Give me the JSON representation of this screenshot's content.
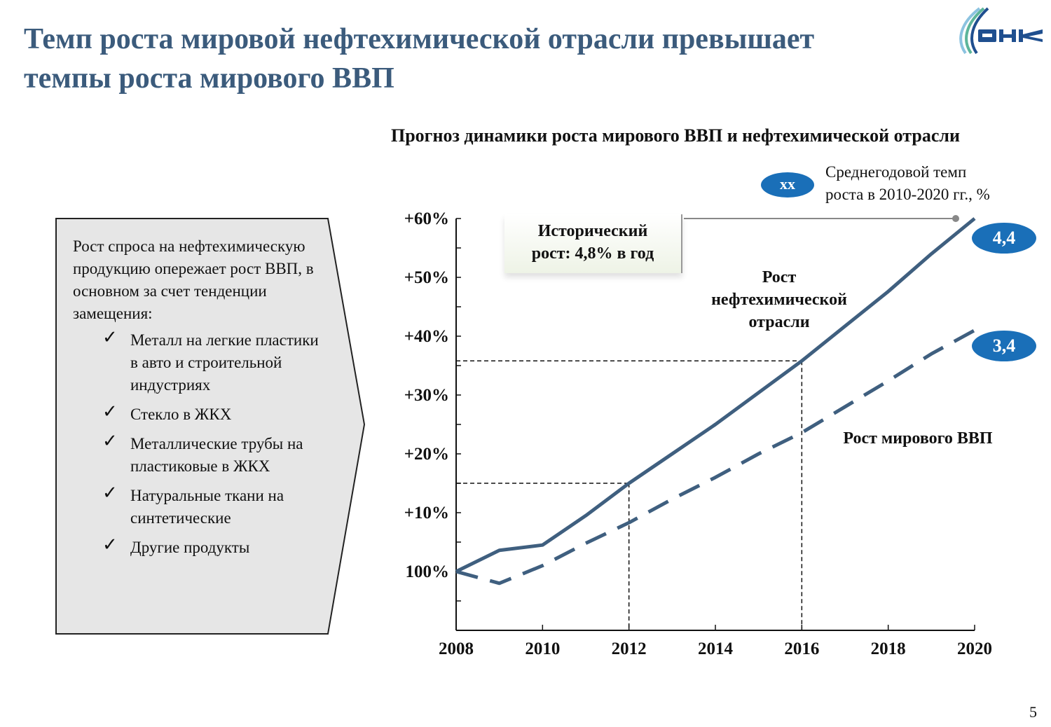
{
  "slide": {
    "title_line1": "Темп роста мировой нефтехимической отрасли превышает",
    "title_line2": "темпы роста мирового ВВП",
    "logo_text": "ОНК",
    "page_number": "5"
  },
  "left_box": {
    "intro": "Рост спроса на нефтехимическую продукцию опережает рост ВВП, в основном за счет тенденции замещения:",
    "check_icon": "check-mark",
    "items": [
      "Металл на легкие пластики в авто и строительной индустриях",
      "Стекло в ЖКХ",
      "Металлические трубы на пластиковые в ЖКХ",
      "Натуральные ткани на синтетические",
      "Другие продукты"
    ]
  },
  "chart_data": {
    "type": "line",
    "title": "Прогноз динамики роста мирового ВВП и нефтехимической отрасли",
    "x": [
      2008,
      2009,
      2010,
      2011,
      2012,
      2013,
      2014,
      2015,
      2016,
      2017,
      2018,
      2019,
      2020
    ],
    "x_tick_labels": [
      "2008",
      "2010",
      "2012",
      "2014",
      "2016",
      "2018",
      "2020"
    ],
    "y_tick_values": [
      0,
      10,
      20,
      30,
      40,
      50,
      60
    ],
    "y_tick_labels": [
      "100%",
      "+10%",
      "+20%",
      "+30%",
      "+40%",
      "+50%",
      "+60%"
    ],
    "ylim": [
      -10,
      60
    ],
    "xlim": [
      2008,
      2020
    ],
    "grid": false,
    "series": [
      {
        "name": "Рост нефтехимической отрасли",
        "style": "solid",
        "color": "#3f5f7f",
        "values": [
          0,
          3.6,
          4.5,
          9.5,
          15,
          20,
          25,
          30.4,
          35.8,
          41.7,
          47.6,
          54,
          60
        ],
        "end_label": "4,4"
      },
      {
        "name": "Рост мирового ВВП",
        "style": "dashed",
        "color": "#3f5f7f",
        "values": [
          0,
          -2,
          1,
          4.8,
          8.3,
          12.3,
          16,
          20,
          23.6,
          28,
          32.4,
          37,
          41
        ],
        "end_label": "3,4"
      }
    ],
    "reference_lines": [
      {
        "x": 2012,
        "y": 15
      },
      {
        "x": 2016,
        "y": 35.8
      }
    ],
    "annotation_line1": "Исторический",
    "annotation_line2": "рост: 4,8% в год",
    "legend": {
      "marker": "xx",
      "text_line1": "Среднегодовой темп",
      "text_line2": "роста в 2010-2020 гг., %",
      "placement": "top-right"
    },
    "label_color": "#1a6fb8"
  }
}
